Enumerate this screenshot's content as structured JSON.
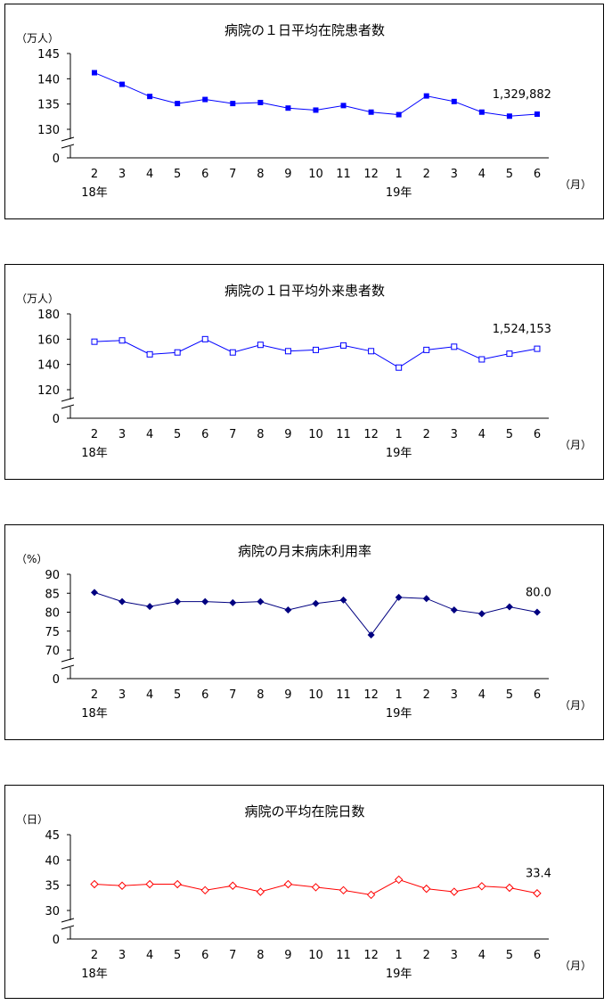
{
  "chart_data": [
    {
      "type": "line",
      "title": "病院の１日平均在院患者数",
      "ylabel": "（万人）",
      "xunit": "（月）",
      "ylim": [
        130,
        145
      ],
      "yticks": [
        130,
        135,
        140,
        145
      ],
      "ybreak_label": "0",
      "categories": [
        "2",
        "3",
        "4",
        "5",
        "6",
        "7",
        "8",
        "9",
        "10",
        "11",
        "12",
        "1",
        "2",
        "3",
        "4",
        "5",
        "6"
      ],
      "year_labels": [
        "18年",
        "19年"
      ],
      "annotation": "1,329,882",
      "marker": "filled-square",
      "color": "#0000ff",
      "series": [
        {
          "values": [
            141.2,
            138.9,
            136.5,
            135.1,
            135.9,
            135.1,
            135.3,
            134.2,
            133.8,
            134.7,
            133.4,
            132.9,
            136.6,
            135.5,
            133.4,
            132.6,
            133.0
          ]
        }
      ]
    },
    {
      "type": "line",
      "title": "病院の１日平均外来患者数",
      "ylabel": "（万人）",
      "xunit": "（月）",
      "ylim": [
        120,
        180
      ],
      "yticks": [
        120,
        140,
        160,
        180
      ],
      "ybreak_label": "0",
      "categories": [
        "2",
        "3",
        "4",
        "5",
        "6",
        "7",
        "8",
        "9",
        "10",
        "11",
        "12",
        "1",
        "2",
        "3",
        "4",
        "5",
        "6"
      ],
      "year_labels": [
        "18年",
        "19年"
      ],
      "annotation": "1,524,153",
      "marker": "hollow-square",
      "color": "#0000ff",
      "series": [
        {
          "values": [
            158.0,
            159.0,
            148.0,
            149.5,
            160.0,
            149.5,
            155.5,
            150.5,
            151.5,
            155.0,
            150.5,
            137.5,
            151.5,
            154.0,
            144.0,
            148.5,
            152.4
          ]
        }
      ]
    },
    {
      "type": "line",
      "title": "病院の月末病床利用率",
      "ylabel": "（%）",
      "xunit": "（月）",
      "ylim": [
        70,
        90
      ],
      "yticks": [
        70,
        75,
        80,
        85,
        90
      ],
      "ybreak_label": "0",
      "categories": [
        "2",
        "3",
        "4",
        "5",
        "6",
        "7",
        "8",
        "9",
        "10",
        "11",
        "12",
        "1",
        "2",
        "3",
        "4",
        "5",
        "6"
      ],
      "year_labels": [
        "18年",
        "19年"
      ],
      "annotation": "80.0",
      "marker": "filled-diamond",
      "color": "#000080",
      "series": [
        {
          "values": [
            85.2,
            82.8,
            81.5,
            82.8,
            82.8,
            82.5,
            82.8,
            80.6,
            82.3,
            83.2,
            74.0,
            83.9,
            83.6,
            80.6,
            79.6,
            81.4,
            80.0
          ]
        }
      ]
    },
    {
      "type": "line",
      "title": "病院の平均在院日数",
      "ylabel": "（日）",
      "xunit": "（月）",
      "ylim": [
        30,
        45
      ],
      "yticks": [
        30,
        35,
        40,
        45
      ],
      "ybreak_label": "0",
      "categories": [
        "2",
        "3",
        "4",
        "5",
        "6",
        "7",
        "8",
        "9",
        "10",
        "11",
        "12",
        "1",
        "2",
        "3",
        "4",
        "5",
        "6"
      ],
      "year_labels": [
        "18年",
        "19年"
      ],
      "annotation": "33.4",
      "marker": "hollow-diamond",
      "color": "#ff0000",
      "series": [
        {
          "values": [
            35.2,
            34.9,
            35.2,
            35.2,
            34.0,
            34.9,
            33.7,
            35.2,
            34.6,
            34.0,
            33.1,
            36.1,
            34.3,
            33.7,
            34.8,
            34.5,
            33.4
          ]
        }
      ]
    }
  ]
}
